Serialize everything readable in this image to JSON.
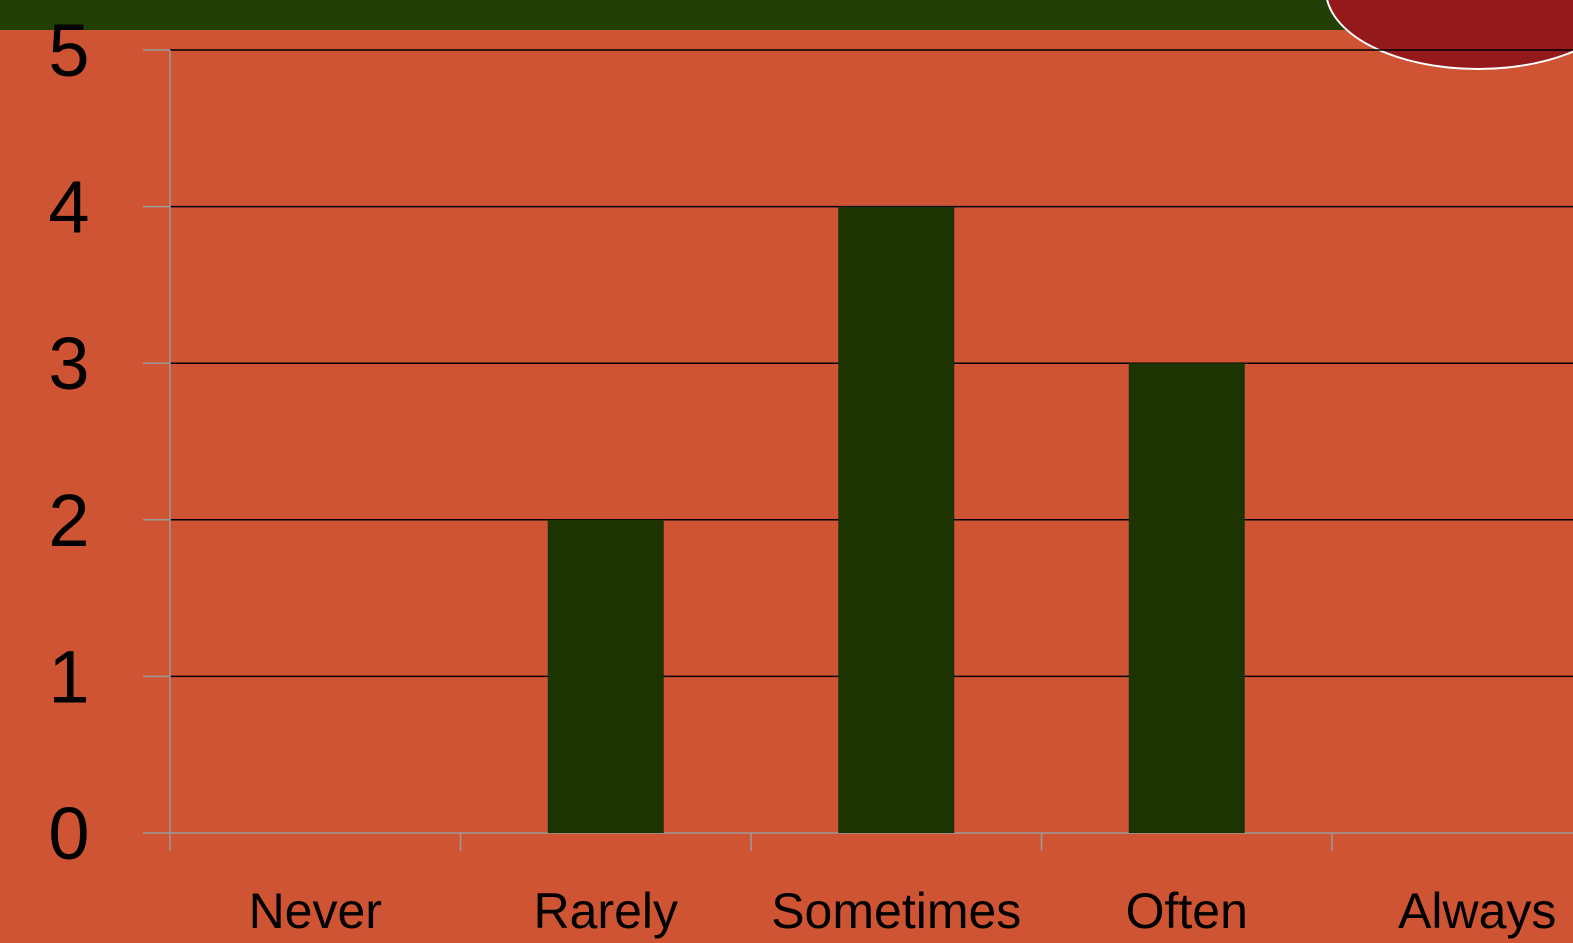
{
  "colors": {
    "background": "#cf5433",
    "top_band": "#223f05",
    "badge": "#93191a",
    "bar": "#1b3401",
    "gridline": "#000000",
    "axis": "#9a9a9a"
  },
  "chart_data": {
    "type": "bar",
    "title": "",
    "xlabel": "",
    "ylabel": "",
    "categories": [
      "Never",
      "Rarely",
      "Sometimes",
      "Often",
      "Always"
    ],
    "series": [
      {
        "values": [
          0,
          2,
          4,
          3,
          0
        ]
      }
    ],
    "ylim": [
      0,
      5
    ],
    "yticks": [
      "0",
      "1",
      "2",
      "3",
      "4",
      "5"
    ],
    "grid": true,
    "legend": "none"
  }
}
